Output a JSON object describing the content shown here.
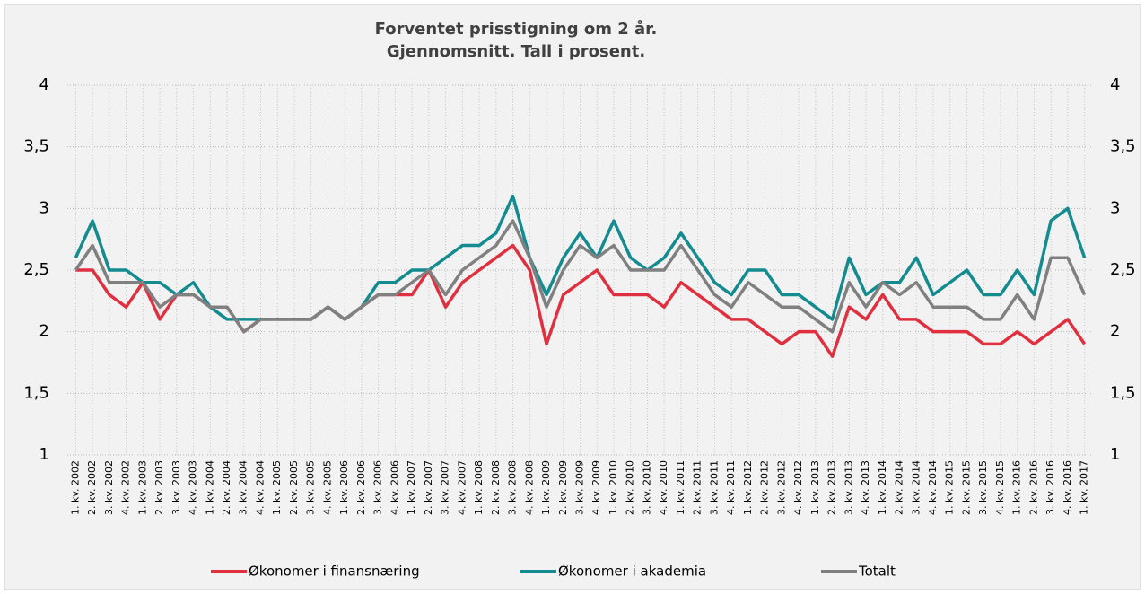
{
  "chart_data": {
    "type": "line",
    "title": [
      "Forventet prisstigning om 2 år.",
      "Gjennomsnitt. Tall i prosent."
    ],
    "categories": [
      "1. kv. 2002",
      "2. kv. 2002",
      "3. kv. 2002",
      "4. kv. 2002",
      "1. kv. 2003",
      "2. kv. 2003",
      "3. kv. 2003",
      "4. kv. 2003",
      "1. kv. 2004",
      "2. kv. 2004",
      "3. kv. 2004",
      "4. kv. 2004",
      "1. kv. 2005",
      "2. kv. 2005",
      "3. kv. 2005",
      "4. kv. 2005",
      "1. kv. 2006",
      "2. kv. 2006",
      "3. kv. 2006",
      "4. kv. 2006",
      "1. kv. 2007",
      "2. kv. 2007",
      "3. kv. 2007",
      "4. kv. 2007",
      "1. kv. 2008",
      "2. kv. 2008",
      "3. kv. 2008",
      "4. kv. 2008",
      "1. kv. 2009",
      "2. kv. 2009",
      "3. kv. 2009",
      "4. kv. 2009",
      "1. kv. 2010",
      "2. kv. 2010",
      "3. kv. 2010",
      "4. kv. 2010",
      "1. kv. 2011",
      "2. kv. 2011",
      "3. kv. 2011",
      "4. kv. 2011",
      "1. kv. 2012",
      "2. kv. 2012",
      "3. kv. 2012",
      "4. kv. 2012",
      "1. kv. 2013",
      "2. kv. 2013",
      "3. kv. 2013",
      "4. kv. 2013",
      "1. kv. 2014",
      "2. kv. 2014",
      "3. kv. 2014",
      "4. kv. 2014",
      "1. kv. 2015",
      "2. kv. 2015",
      "3. kv. 2015",
      "4. kv. 2015",
      "1. kv. 2016",
      "2. kv. 2016",
      "3. kv. 2016",
      "4. kv. 2016",
      "1. kv. 2017"
    ],
    "series": [
      {
        "name": "Økonomer i finansnæring",
        "color": "#e0303f",
        "values": [
          2.5,
          2.5,
          2.3,
          2.2,
          2.4,
          2.1,
          2.3,
          2.3,
          2.2,
          2.2,
          2.0,
          2.1,
          2.1,
          2.1,
          2.1,
          2.2,
          2.1,
          2.2,
          2.3,
          2.3,
          2.3,
          2.5,
          2.2,
          2.4,
          2.5,
          2.6,
          2.7,
          2.5,
          1.9,
          2.3,
          2.4,
          2.5,
          2.3,
          2.3,
          2.3,
          2.2,
          2.4,
          2.3,
          2.2,
          2.1,
          2.1,
          2.0,
          1.9,
          2.0,
          2.0,
          1.8,
          2.2,
          2.1,
          2.3,
          2.1,
          2.1,
          2.0,
          2.0,
          2.0,
          1.9,
          1.9,
          2.0,
          1.9,
          2.0,
          2.1,
          1.9
        ]
      },
      {
        "name": "Økonomer i akademia",
        "color": "#138b8f",
        "values": [
          2.6,
          2.9,
          2.5,
          2.5,
          2.4,
          2.4,
          2.3,
          2.4,
          2.2,
          2.1,
          2.1,
          2.1,
          2.1,
          2.1,
          2.1,
          2.2,
          2.1,
          2.2,
          2.4,
          2.4,
          2.5,
          2.5,
          2.6,
          2.7,
          2.7,
          2.8,
          3.1,
          2.6,
          2.3,
          2.6,
          2.8,
          2.6,
          2.9,
          2.6,
          2.5,
          2.6,
          2.8,
          2.6,
          2.4,
          2.3,
          2.5,
          2.5,
          2.3,
          2.3,
          2.2,
          2.1,
          2.6,
          2.3,
          2.4,
          2.4,
          2.6,
          2.3,
          2.4,
          2.5,
          2.3,
          2.3,
          2.5,
          2.3,
          2.9,
          3.0,
          2.6
        ]
      },
      {
        "name": "Totalt",
        "color": "#808080",
        "values": [
          2.5,
          2.7,
          2.4,
          2.4,
          2.4,
          2.2,
          2.3,
          2.3,
          2.2,
          2.2,
          2.0,
          2.1,
          2.1,
          2.1,
          2.1,
          2.2,
          2.1,
          2.2,
          2.3,
          2.3,
          2.4,
          2.5,
          2.3,
          2.5,
          2.6,
          2.7,
          2.9,
          2.6,
          2.2,
          2.5,
          2.7,
          2.6,
          2.7,
          2.5,
          2.5,
          2.5,
          2.7,
          2.5,
          2.3,
          2.2,
          2.4,
          2.3,
          2.2,
          2.2,
          2.1,
          2.0,
          2.4,
          2.2,
          2.4,
          2.3,
          2.4,
          2.2,
          2.2,
          2.2,
          2.1,
          2.1,
          2.3,
          2.1,
          2.6,
          2.6,
          2.3
        ]
      }
    ],
    "ylim": [
      1,
      4
    ],
    "yticks": [
      1,
      {
        "value": 1.5,
        "label": "1,5"
      },
      2,
      {
        "value": 2.5,
        "label": "2,5"
      },
      3,
      {
        "value": 3.5,
        "label": "3,5"
      },
      4
    ],
    "y2lim": [
      1,
      4
    ],
    "y2ticks": [
      1,
      {
        "value": 1.5,
        "label": "1,5"
      },
      2,
      {
        "value": 2.5,
        "label": "2,5"
      },
      3,
      {
        "value": 3.5,
        "label": "3,5"
      },
      4
    ],
    "grid": true,
    "legend": "bottom"
  }
}
